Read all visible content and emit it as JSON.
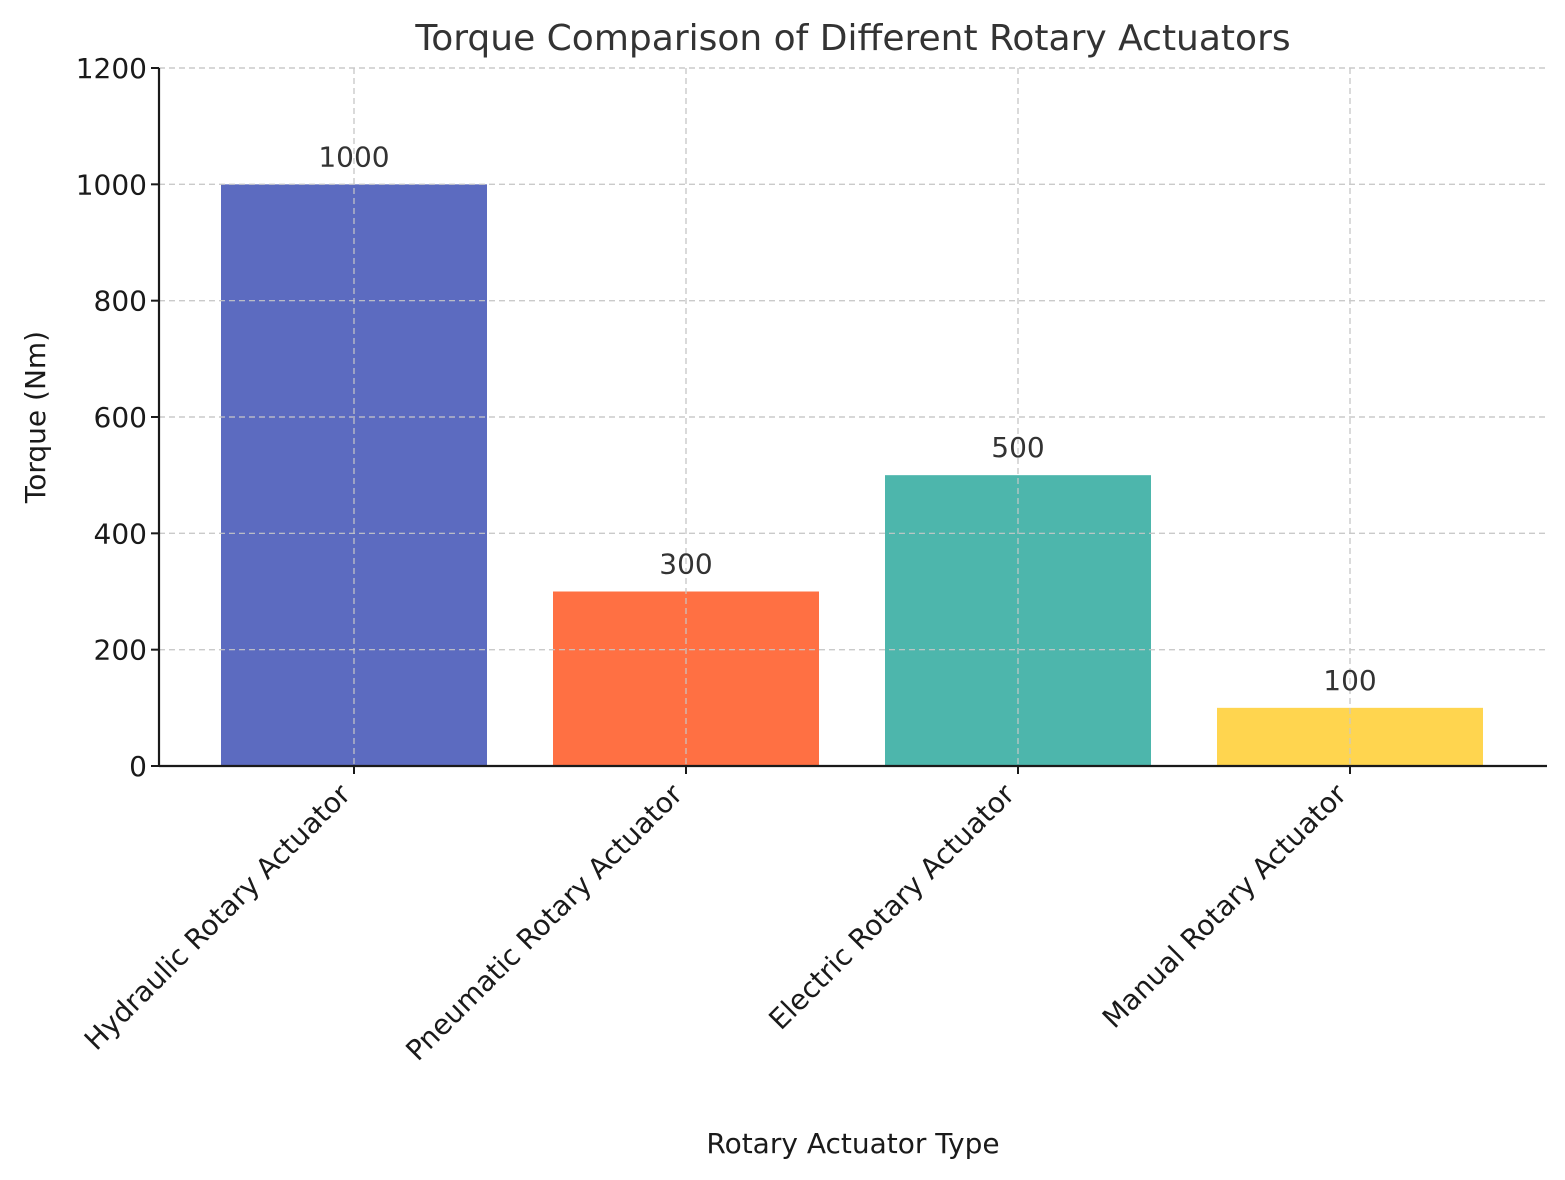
{
  "chart_data": {
    "type": "bar",
    "title": "Torque Comparison of Different Rotary Actuators",
    "xlabel": "Rotary Actuator Type",
    "ylabel": "Torque (Nm)",
    "categories": [
      "Hydraulic Rotary Actuator",
      "Pneumatic Rotary Actuator",
      "Electric Rotary Actuator",
      "Manual Rotary Actuator"
    ],
    "values": [
      1000,
      300,
      500,
      100
    ],
    "data_labels": [
      "1000",
      "300",
      "500",
      "100"
    ],
    "colors": [
      "#5c6bc0",
      "#ff7043",
      "#4db6ac",
      "#ffd54f"
    ],
    "ylim": [
      0,
      1200
    ],
    "yticks": [
      0,
      200,
      400,
      600,
      800,
      1000,
      1200
    ],
    "grid": true,
    "legend": "none"
  }
}
